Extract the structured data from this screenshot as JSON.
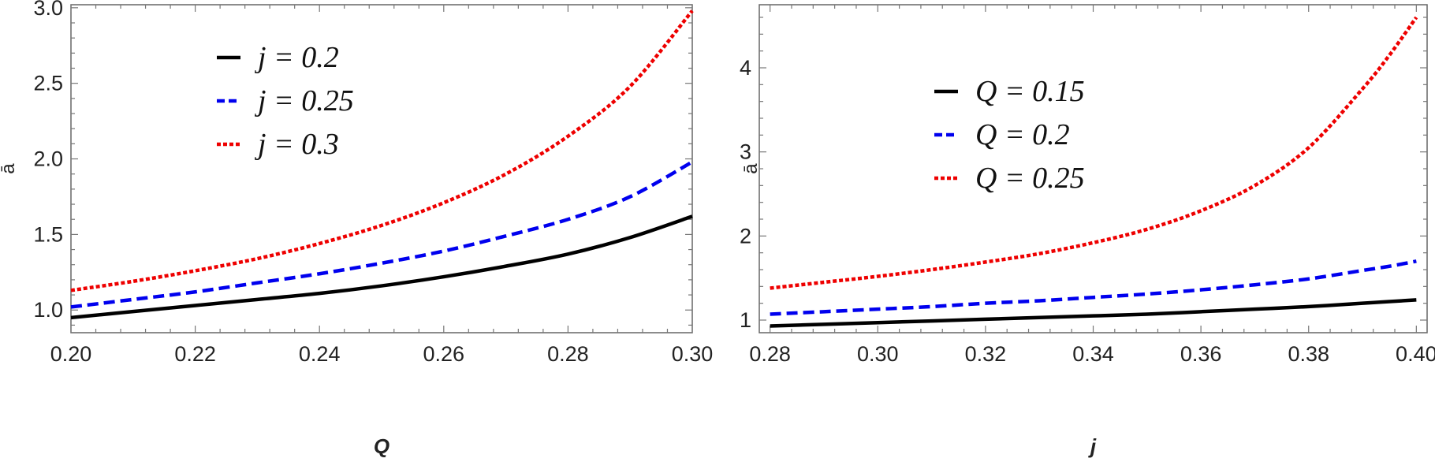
{
  "chart_data": [
    {
      "type": "line",
      "xlabel": "Q",
      "ylabel": "ā",
      "xlim": [
        0.2,
        0.3
      ],
      "ylim": [
        0.85,
        3.02
      ],
      "xticks": [
        0.2,
        0.22,
        0.24,
        0.26,
        0.28,
        0.3
      ],
      "xtick_labels": [
        "0.20",
        "0.22",
        "0.24",
        "0.26",
        "0.28",
        "0.30"
      ],
      "yticks": [
        1.0,
        1.5,
        2.0,
        2.5,
        3.0
      ],
      "ytick_labels": [
        "1.0",
        "1.5",
        "2.0",
        "2.5",
        "3.0"
      ],
      "legend_position": "top-left",
      "x": [
        0.2,
        0.21,
        0.22,
        0.23,
        0.24,
        0.25,
        0.26,
        0.27,
        0.28,
        0.29,
        0.3
      ],
      "series": [
        {
          "name": "j = 0.2",
          "color": "#000000",
          "style": "solid",
          "values": [
            0.95,
            0.99,
            1.03,
            1.07,
            1.11,
            1.16,
            1.22,
            1.29,
            1.37,
            1.48,
            1.62
          ]
        },
        {
          "name": "j = 0.25",
          "color": "#0000ee",
          "style": "dashed",
          "values": [
            1.02,
            1.07,
            1.12,
            1.18,
            1.24,
            1.31,
            1.39,
            1.49,
            1.6,
            1.75,
            1.98
          ]
        },
        {
          "name": "j = 0.3",
          "color": "#ee0000",
          "style": "dotted",
          "values": [
            1.13,
            1.19,
            1.26,
            1.34,
            1.44,
            1.56,
            1.71,
            1.9,
            2.15,
            2.48,
            2.98
          ]
        }
      ]
    },
    {
      "type": "line",
      "xlabel": "j",
      "ylabel": "ā",
      "xlim": [
        0.278,
        0.402
      ],
      "ylim": [
        0.85,
        4.75
      ],
      "xticks": [
        0.28,
        0.3,
        0.32,
        0.34,
        0.36,
        0.38,
        0.4
      ],
      "xtick_labels": [
        "0.28",
        "0.30",
        "0.32",
        "0.34",
        "0.36",
        "0.38",
        "0.40"
      ],
      "yticks": [
        1,
        2,
        3,
        4
      ],
      "ytick_labels": [
        "1",
        "2",
        "3",
        "4"
      ],
      "legend_position": "top-left",
      "x": [
        0.28,
        0.29,
        0.3,
        0.31,
        0.32,
        0.33,
        0.34,
        0.35,
        0.36,
        0.37,
        0.38,
        0.39,
        0.395,
        0.4
      ],
      "series": [
        {
          "name": "Q = 0.15",
          "color": "#000000",
          "style": "solid",
          "values": [
            0.93,
            0.95,
            0.97,
            0.99,
            1.01,
            1.03,
            1.05,
            1.07,
            1.1,
            1.13,
            1.16,
            1.2,
            1.22,
            1.24
          ]
        },
        {
          "name": "Q = 0.2",
          "color": "#0000ee",
          "style": "dashed",
          "values": [
            1.07,
            1.1,
            1.13,
            1.16,
            1.2,
            1.23,
            1.27,
            1.31,
            1.36,
            1.42,
            1.49,
            1.59,
            1.64,
            1.7
          ]
        },
        {
          "name": "Q = 0.25",
          "color": "#ee0000",
          "style": "dotted",
          "values": [
            1.38,
            1.45,
            1.52,
            1.6,
            1.69,
            1.79,
            1.92,
            2.08,
            2.3,
            2.6,
            3.05,
            3.75,
            4.15,
            4.6
          ]
        }
      ]
    }
  ]
}
